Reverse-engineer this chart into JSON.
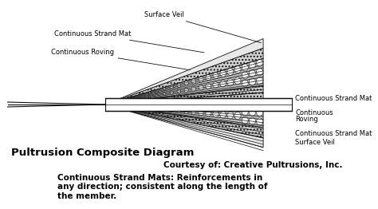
{
  "bg_color": "#ffffff",
  "title_text": "Pultrusion Composite Diagram",
  "title_fontsize": 9.5,
  "title_fontweight": "bold",
  "courtesy_text": "Courtesy of: Creative Pultrusions, Inc.",
  "courtesy_fontsize": 7.5,
  "courtesy_fontweight": "bold",
  "caption_text": "Continuous Strand Mats: Reinforcements in\nany direction; consistent along the length of\nthe member.",
  "caption_fontsize": 7.5,
  "caption_fontweight": "bold",
  "line_color": "#111111"
}
